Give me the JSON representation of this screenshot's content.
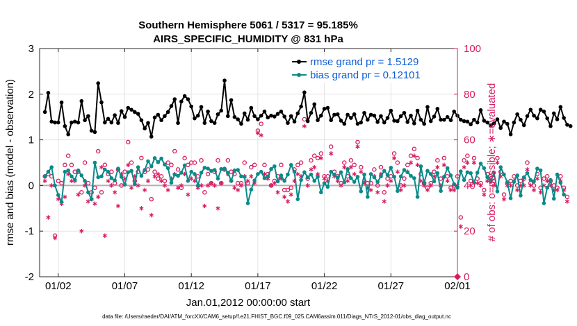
{
  "chart_data": {
    "type": "line",
    "title": "Southern Hemisphere 5061 / 5317 = 95.185%",
    "subtitle": "AIRS_SPECIFIC_HUMIDITY @ 831 hPa",
    "xlabel": "Jan.01,2012 00:00:00 start",
    "ylabel_left": "rmse and bias (model - observation)",
    "ylabel_right": "# of obs: o=possible; ∗=evaluated",
    "footnote": "data file: /Users/raeder/DAI/ATM_forcXX/CAM6_setup/f.e21.FHIST_BGC.f09_025.CAM6assim.011/Diags_NTrS_2012-01/obs_diag_output.nc",
    "xlim": [
      0.6,
      32.0
    ],
    "ylim_left": [
      -2,
      3
    ],
    "ylim_right": [
      0,
      100
    ],
    "x_ticks": [
      2,
      7,
      12,
      17,
      22,
      27,
      32
    ],
    "x_tick_labels": [
      "01/02",
      "01/07",
      "01/12",
      "01/17",
      "01/22",
      "01/27",
      "02/01"
    ],
    "y_ticks_left": [
      -2,
      -1,
      0,
      1,
      2,
      3
    ],
    "y_tick_labels_left": [
      "-2",
      "-1",
      "0",
      "1",
      "2",
      "3"
    ],
    "y_ticks_right": [
      0,
      20,
      40,
      60,
      80,
      100
    ],
    "y_tick_labels_right": [
      "0",
      "20",
      "40",
      "60",
      "80",
      "100"
    ],
    "grid": true,
    "legend_position": "top-right",
    "colors": {
      "rmse": "#000000",
      "bias": "#0b8a8a",
      "obs": "#d81b60",
      "right_axis": "#d81b60",
      "zero_line": "#b0b0b0",
      "legend_text": "#0d5fd6"
    },
    "series": [
      {
        "name": "rmse grand pr = 1.5129",
        "axis": "left",
        "x_start": 1.0,
        "x_step": 0.25,
        "values": [
          1.61,
          2.03,
          1.4,
          1.38,
          1.38,
          1.82,
          1.3,
          1.12,
          1.38,
          1.4,
          1.38,
          1.85,
          1.43,
          1.52,
          1.2,
          1.17,
          2.24,
          1.82,
          1.38,
          1.46,
          1.38,
          1.54,
          1.37,
          1.63,
          1.5,
          1.7,
          1.66,
          1.61,
          1.57,
          1.43,
          1.25,
          1.37,
          1.07,
          1.49,
          1.55,
          1.43,
          1.52,
          1.61,
          1.74,
          1.89,
          1.37,
          1.84,
          1.96,
          1.89,
          1.73,
          1.47,
          1.53,
          1.72,
          1.37,
          1.62,
          1.41,
          1.37,
          1.56,
          1.64,
          2.3,
          1.52,
          1.87,
          1.5,
          1.45,
          1.35,
          1.58,
          1.44,
          1.7,
          1.52,
          1.45,
          1.53,
          1.62,
          1.49,
          1.53,
          1.51,
          1.57,
          1.62,
          1.51,
          1.37,
          1.52,
          1.4,
          1.58,
          1.73,
          2.04,
          1.41,
          1.59,
          1.78,
          1.43,
          1.53,
          1.68,
          1.7,
          1.43,
          1.55,
          1.56,
          1.42,
          1.35,
          1.55,
          1.48,
          1.56,
          1.35,
          1.38,
          1.59,
          1.44,
          1.55,
          1.53,
          1.39,
          1.52,
          1.38,
          1.48,
          1.64,
          1.42,
          1.41,
          1.52,
          1.59,
          1.39,
          1.53,
          1.36,
          1.64,
          1.44,
          1.35,
          1.72,
          1.41,
          1.51,
          1.68,
          1.44,
          1.44,
          1.5,
          1.43,
          1.62,
          1.53,
          1.44,
          1.41,
          1.4,
          1.34,
          1.44,
          1.38,
          1.65,
          1.42,
          1.38,
          1.31,
          1.36,
          1.45,
          1.26,
          1.4,
          1.35,
          1.12,
          1.38,
          1.56,
          1.44,
          1.32,
          1.52,
          1.66,
          1.53,
          1.47,
          1.66,
          1.62,
          1.47,
          1.3,
          1.58,
          1.45,
          1.72,
          1.48,
          1.33,
          1.3
        ]
      },
      {
        "name": "bias grand pr = 0.12101",
        "axis": "left",
        "x_start": 1.0,
        "x_step": 0.25,
        "values": [
          0.2,
          0.3,
          0.4,
          0.0,
          -0.21,
          -0.36,
          0.3,
          0.33,
          0.2,
          0.12,
          0.33,
          0.22,
          0.1,
          -0.15,
          -0.3,
          0.5,
          0.18,
          0.2,
          0.35,
          0.3,
          0.16,
          0.11,
          0.37,
          0.19,
          0.02,
          0.29,
          0.32,
          0.03,
          0.4,
          0.21,
          0.34,
          0.53,
          0.42,
          0.6,
          0.51,
          0.59,
          0.46,
          0.38,
          0.06,
          0.24,
          0.21,
          0.28,
          0.44,
          0.1,
          0.3,
          0.25,
          0.0,
          0.28,
          0.39,
          0.37,
          0.32,
          0.34,
          0.15,
          0.36,
          0.37,
          0.28,
          0.1,
          0.33,
          0.34,
          0.2,
          0.19,
          -0.39,
          -0.09,
          0.11,
          0.25,
          0.3,
          0.16,
          0.2,
          0.36,
          0.42,
          0.09,
          0.22,
          0.1,
          0.24,
          0.45,
          0.3,
          -0.3,
          0.12,
          0.29,
          0.18,
          0.24,
          0.1,
          0.19,
          -0.15,
          0.05,
          -0.03,
          0.3,
          0.24,
          0.17,
          0.29,
          0.07,
          0.36,
          0.16,
          0.08,
          0.19,
          -0.13,
          0.24,
          -0.25,
          0.25,
          0.18,
          0.08,
          0.2,
          0.32,
          0.23,
          0.39,
          0.19,
          -0.12,
          0.2,
          0.34,
          0.29,
          0.21,
          0.16,
          -0.25,
          0.42,
          0.06,
          0.32,
          0.25,
          0.09,
          0.27,
          -0.12,
          0.19,
          0.38,
          0.22,
          0.03,
          -0.05,
          0.31,
          0.12,
          0.29,
          0.27,
          0.06,
          0.28,
          0.48,
          0.38,
          0.18,
          0.08,
          0.28,
          -0.13,
          0.4,
          0.24,
          0.07,
          -0.28,
          0.08,
          0.22,
          -0.22,
          0.18,
          0.27,
          0.12,
          0.09,
          0.37,
          0.33,
          -0.39,
          -0.05,
          0.12,
          -0.29,
          0.24,
          0.06,
          -0.2
        ]
      },
      {
        "name": "obs possible",
        "axis": "right",
        "marker": "circle",
        "x_start": 1.0,
        "x_step": 0.25,
        "values": [
          44,
          45,
          44,
          18,
          42,
          41,
          49,
          53,
          49,
          46,
          46,
          37,
          50,
          41,
          37,
          39,
          55,
          37,
          49,
          45,
          46,
          41,
          47,
          40,
          46,
          59,
          50,
          42,
          46,
          52,
          46,
          47,
          34,
          46,
          43,
          44,
          42,
          50,
          49,
          55,
          47,
          39,
          52,
          49,
          50,
          50,
          44,
          51,
          37,
          45,
          41,
          46,
          51,
          41,
          47,
          51,
          46,
          45,
          41,
          41,
          50,
          41,
          48,
          49,
          64,
          67,
          49,
          45,
          40,
          42,
          44,
          49,
          38,
          38,
          39,
          47,
          49,
          50,
          69,
          43,
          51,
          53,
          52,
          54,
          44,
          44,
          57,
          46,
          44,
          41,
          50,
          44,
          51,
          49,
          59,
          48,
          42,
          41,
          41,
          47,
          40,
          48,
          37,
          43,
          44,
          54,
          50,
          40,
          43,
          49,
          53,
          56,
          52,
          45,
          41,
          39,
          41,
          46,
          51,
          43,
          52,
          44,
          39,
          40,
          44,
          26,
          51,
          53,
          42,
          52,
          43,
          41,
          38,
          45,
          44,
          42,
          52,
          46,
          36,
          41,
          42,
          44,
          40,
          42,
          43,
          50,
          41,
          40,
          45,
          39,
          43,
          44,
          42,
          40,
          39,
          44,
          39,
          35
        ]
      },
      {
        "name": "obs evaluated",
        "axis": "right",
        "marker": "asterisk",
        "x_start": 1.0,
        "x_step": 0.25,
        "values": [
          42,
          26,
          40,
          17,
          34,
          32,
          35,
          45,
          42,
          42,
          36,
          20,
          40,
          33,
          34,
          32,
          35,
          48,
          18,
          42,
          40,
          37,
          31,
          45,
          43,
          49,
          39,
          44,
          40,
          30,
          38,
          42,
          27,
          44,
          45,
          42,
          40,
          38,
          43,
          45,
          39,
          40,
          45,
          36,
          43,
          42,
          39,
          40,
          31,
          40,
          41,
          40,
          30,
          41,
          47,
          45,
          42,
          39,
          38,
          40,
          44,
          42,
          44,
          41,
          63,
          62,
          45,
          43,
          40,
          41,
          37,
          43,
          35,
          33,
          36,
          42,
          45,
          44,
          66,
          40,
          47,
          48,
          45,
          52,
          43,
          42,
          54,
          44,
          42,
          40,
          48,
          42,
          48,
          45,
          57,
          46,
          41,
          39,
          38,
          44,
          37,
          45,
          33,
          40,
          42,
          52,
          46,
          38,
          40,
          46,
          50,
          53,
          49,
          42,
          40,
          38,
          40,
          44,
          48,
          40,
          49,
          42,
          38,
          38,
          40,
          22,
          48,
          50,
          40,
          50,
          41,
          40,
          36,
          42,
          42,
          40,
          50,
          44,
          34,
          40,
          40,
          42,
          38,
          40,
          40,
          47,
          40,
          38,
          43,
          37,
          40,
          42,
          40,
          38,
          38,
          42,
          38,
          33
        ]
      },
      {
        "name": "obs evaluated (end)",
        "axis": "right",
        "marker": "filled-diamond",
        "x": [
          32.0
        ],
        "values": [
          0
        ]
      }
    ]
  }
}
